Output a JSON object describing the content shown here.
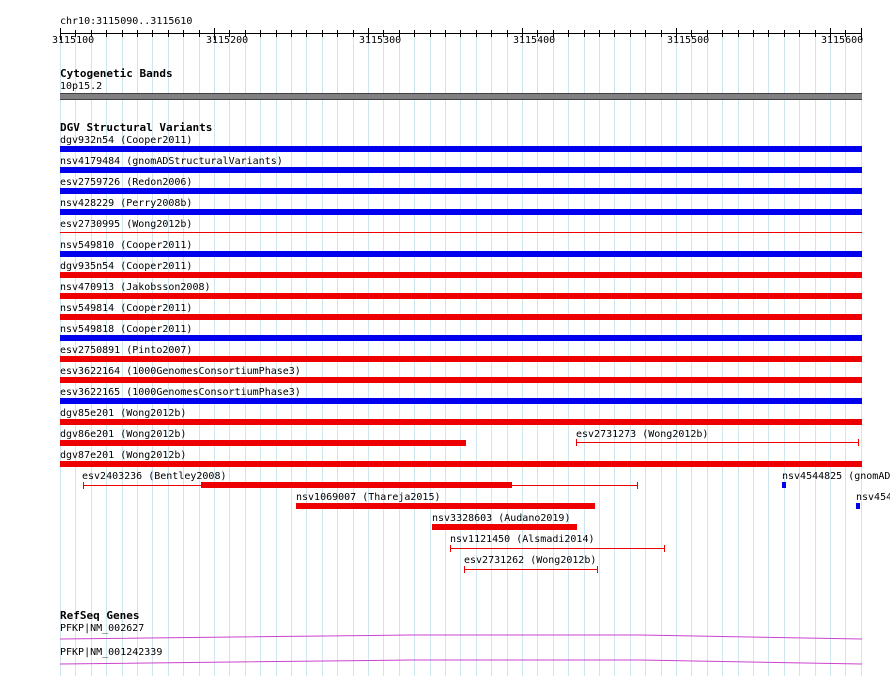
{
  "locus": "chr10:3115090..3115610",
  "ruler": {
    "ticks": [
      "3115100",
      "3115200",
      "3115300",
      "3115400",
      "3115500",
      "3115600"
    ]
  },
  "cytobands": {
    "title": "Cytogenetic Bands",
    "band_label": "10p15.2"
  },
  "dgv": {
    "title": "DGV Structural Variants",
    "rows": [
      {
        "label": "dgv932n54 (Cooper2011)",
        "color": "#0000ee",
        "style": "full"
      },
      {
        "label": "nsv4179484 (gnomADStructuralVariants)",
        "color": "#0000ee",
        "style": "full"
      },
      {
        "label": "esv2759726 (Redon2006)",
        "color": "#0000ee",
        "style": "full"
      },
      {
        "label": "nsv428229 (Perry2008b)",
        "color": "#0000ee",
        "style": "full"
      },
      {
        "label": "esv2730995 (Wong2012b)",
        "color": "#ee0000",
        "style": "thin"
      },
      {
        "label": "nsv549810 (Cooper2011)",
        "color": "#0000ee",
        "style": "full"
      },
      {
        "label": "dgv935n54 (Cooper2011)",
        "color": "#ee0000",
        "style": "full"
      },
      {
        "label": "nsv470913 (Jakobsson2008)",
        "color": "#ee0000",
        "style": "full"
      },
      {
        "label": "nsv549814 (Cooper2011)",
        "color": "#ee0000",
        "style": "full"
      },
      {
        "label": "nsv549818 (Cooper2011)",
        "color": "#0000ee",
        "style": "full"
      },
      {
        "label": "esv2750891 (Pinto2007)",
        "color": "#ee0000",
        "style": "full"
      },
      {
        "label": "esv3622164 (1000GenomesConsortiumPhase3)",
        "color": "#ee0000",
        "style": "full"
      },
      {
        "label": "esv3622165 (1000GenomesConsortiumPhase3)",
        "color": "#0000ee",
        "style": "full"
      },
      {
        "label": "dgv85e201 (Wong2012b)",
        "color": "#ee0000",
        "style": "full"
      },
      {
        "label": "dgv86e201 (Wong2012b)",
        "color": "#ee0000",
        "style": "partial"
      },
      {
        "label": "dgv87e201 (Wong2012b)",
        "color": "#ee0000",
        "style": "full"
      }
    ],
    "extra": [
      {
        "label": "esv2731273 (Wong2012b)"
      },
      {
        "label": "esv2403236 (Bentley2008)"
      },
      {
        "label": "nsv4544825 (gnomAD"
      },
      {
        "label": "nsv454"
      },
      {
        "label": "nsv1069007 (Thareja2015)"
      },
      {
        "label": "nsv3328603 (Audano2019)"
      },
      {
        "label": "nsv1121450 (Alsmadi2014)"
      },
      {
        "label": "esv2731262 (Wong2012b)"
      }
    ]
  },
  "refseq": {
    "title": "RefSeq Genes",
    "genes": [
      {
        "label": "PFKP|NM_002627"
      },
      {
        "label": "PFKP|NM_001242339"
      }
    ]
  },
  "colors": {
    "loss": "#ee0000",
    "gain": "#0000ee",
    "gene": "#cc44cc",
    "band": "#808080",
    "grid": "#cfe6ee"
  }
}
